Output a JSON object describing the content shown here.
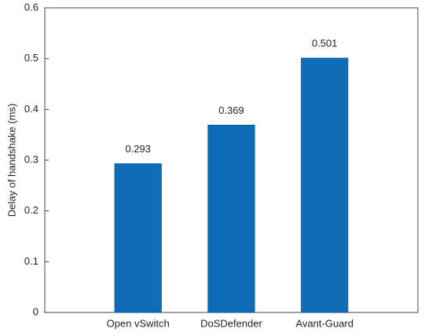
{
  "chart_data": {
    "type": "bar",
    "categories": [
      "Open vSwitch",
      "DoSDefender",
      "Avant-Guard"
    ],
    "values": [
      0.293,
      0.369,
      0.501
    ],
    "color": "#0f6cb6",
    "y_label": "Delay of handshake (ms)",
    "ylim": [
      0,
      0.6
    ],
    "yticks": [
      0,
      0.1,
      0.2,
      0.3,
      0.4,
      0.5,
      0.6
    ],
    "grid": false
  }
}
